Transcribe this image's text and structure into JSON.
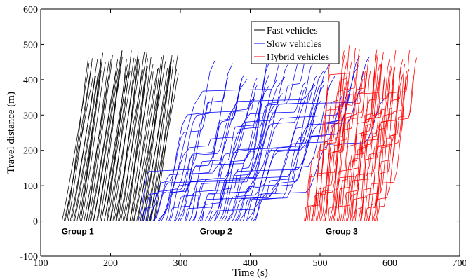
{
  "chart_data": {
    "type": "line",
    "xlabel": "Time (s)",
    "ylabel": "Travel distance (m)",
    "xlim": [
      100,
      700
    ],
    "ylim": [
      -100,
      600
    ],
    "x_ticks": [
      "100",
      "200",
      "300",
      "400",
      "500",
      "600",
      "700"
    ],
    "y_ticks": [
      "-100",
      "0",
      "100",
      "200",
      "300",
      "400",
      "500",
      "600"
    ],
    "grid": false,
    "legend_position": "top-center",
    "legend": [
      {
        "label": "Fast vehicles",
        "color": "#000000"
      },
      {
        "label": "Slow vehicles",
        "color": "#0000ff"
      },
      {
        "label": "Hybrid vehicles",
        "color": "#ff0000"
      }
    ],
    "annotations": [
      {
        "text": "Group 1",
        "x": 153,
        "y": -30
      },
      {
        "text": "Group 2",
        "x": 351,
        "y": -30
      },
      {
        "text": "Group 3",
        "x": 531,
        "y": -30
      }
    ],
    "groups": [
      {
        "series": "Fast vehicles",
        "color": "#000000",
        "vehicle_count": 62,
        "start_time_range": [
          132,
          263
        ],
        "travel_duration_range": [
          28,
          42
        ],
        "final_distance_range": [
          410,
          485
        ],
        "stop_and_go": false
      },
      {
        "series": "Slow vehicles",
        "color": "#0000ff",
        "vehicle_count": 45,
        "start_time_range": [
          240,
          408
        ],
        "travel_duration_range": [
          95,
          185
        ],
        "final_distance_range": [
          330,
          470
        ],
        "stop_and_go": true
      },
      {
        "series": "Hybrid vehicles",
        "color": "#ff0000",
        "vehicle_count": 50,
        "start_time_range": [
          476,
          582
        ],
        "travel_duration_range": [
          40,
          70
        ],
        "final_distance_range": [
          390,
          500
        ],
        "stop_and_go": true
      }
    ]
  }
}
